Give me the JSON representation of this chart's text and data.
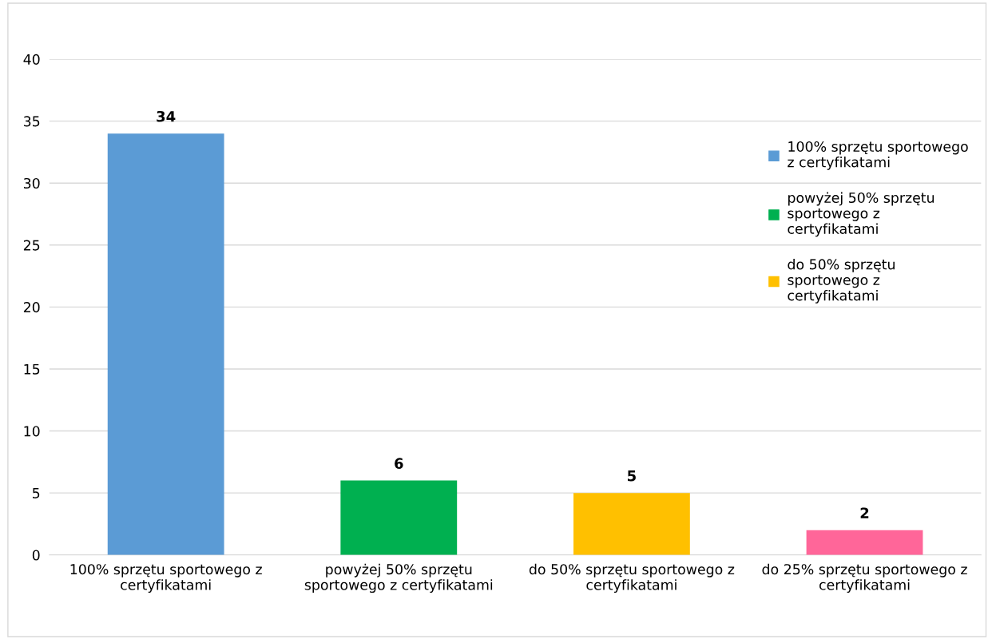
{
  "chart_data": {
    "type": "bar",
    "categories": [
      "100% sprzętu sportowego z\ncertyfikatami",
      "powyżej 50% sprzętu\nsportowego z certyfikatami",
      "do 50% sprzętu sportowego z\ncertyfikatami",
      "do 25% sprzętu sportowego z\ncertyfikatami"
    ],
    "series": [
      {
        "name": "100% sprzętu sportowego\nz certyfikatami",
        "color": "#5b9bd5",
        "values": [
          34,
          null,
          null,
          null
        ]
      },
      {
        "name": "powyżej 50% sprzętu\nsportowego z\ncertyfikatami",
        "color": "#00b050",
        "values": [
          null,
          6,
          null,
          null
        ]
      },
      {
        "name": "do 50% sprzętu\nsportowego z\ncertyfikatami",
        "color": "#ffc000",
        "values": [
          null,
          null,
          5,
          null
        ]
      },
      {
        "color": "#ff6699",
        "values": [
          null,
          null,
          null,
          2
        ]
      }
    ],
    "ylim": [
      0,
      40
    ],
    "yticks": [
      0,
      5,
      10,
      15,
      20,
      25,
      30,
      35,
      40
    ],
    "grid": "y",
    "legend": "right",
    "data_labels": true
  }
}
